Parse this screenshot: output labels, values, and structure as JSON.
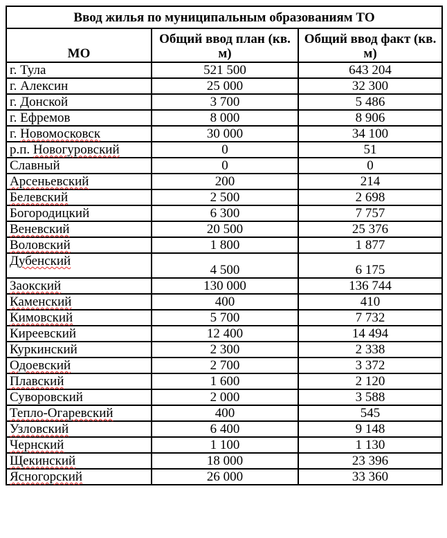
{
  "table": {
    "title": "Ввод жилья по муниципальным образованиям ТО",
    "headers": {
      "mo": "МО",
      "plan": "Общий ввод план (кв. м)",
      "fact": "Общий ввод факт (кв. м)"
    },
    "rows": [
      {
        "name": "г. Тула",
        "plan": "521 500",
        "fact": "643 204",
        "spellcheck": false
      },
      {
        "name": "г. Алексин",
        "plan": "25 000",
        "fact": "32 300",
        "spellcheck": false
      },
      {
        "name": "г. Донской",
        "plan": "3 700",
        "fact": "5 486",
        "spellcheck": false
      },
      {
        "name": "г. Ефремов",
        "plan": "8 000",
        "fact": "8 906",
        "spellcheck": false
      },
      {
        "name": "г. Новомосковск",
        "plan": "30 000",
        "fact": "34 100",
        "spellcheck": true
      },
      {
        "name": "р.п. Новогуровский",
        "plan": "0",
        "fact": "51",
        "spellcheck": true
      },
      {
        "name": "Славный",
        "plan": "0",
        "fact": "0",
        "spellcheck": false
      },
      {
        "name": "Арсеньевский",
        "plan": "200",
        "fact": "214",
        "spellcheck": true
      },
      {
        "name": "Белевский",
        "plan": "2 500",
        "fact": "2 698",
        "spellcheck": true
      },
      {
        "name": "Богородицкий",
        "plan": "6 300",
        "fact": "7 757",
        "spellcheck": false
      },
      {
        "name": "Веневский",
        "plan": "20 500",
        "fact": "25 376",
        "spellcheck": true
      },
      {
        "name": "Воловский",
        "plan": "1 800",
        "fact": "1 877",
        "spellcheck": true
      },
      {
        "name": "Дубенский",
        "plan": "4 500",
        "fact": "6 175",
        "spellcheck": true
      },
      {
        "name": "Заокский",
        "plan": "130 000",
        "fact": "136 744",
        "spellcheck": true
      },
      {
        "name": "Каменский",
        "plan": "400",
        "fact": "410",
        "spellcheck": true
      },
      {
        "name": "Кимовский",
        "plan": "5 700",
        "fact": "7 732",
        "spellcheck": true
      },
      {
        "name": "Киреевский",
        "plan": "12 400",
        "fact": "14 494",
        "spellcheck": false
      },
      {
        "name": "Куркинский",
        "plan": "2 300",
        "fact": "2 338",
        "spellcheck": false
      },
      {
        "name": "Одоевский",
        "plan": "2 700",
        "fact": "3 372",
        "spellcheck": true
      },
      {
        "name": "Плавский",
        "plan": "1 600",
        "fact": "2 120",
        "spellcheck": true
      },
      {
        "name": "Суворовский",
        "plan": "2 000",
        "fact": "3 588",
        "spellcheck": false
      },
      {
        "name": "Тепло-Огаревский",
        "plan": "400",
        "fact": "545",
        "spellcheck": true
      },
      {
        "name": "Узловский",
        "plan": "6 400",
        "fact": "9 148",
        "spellcheck": true
      },
      {
        "name": "Чернский",
        "plan": "1 100",
        "fact": "1 130",
        "spellcheck": true
      },
      {
        "name": "Щекинский",
        "plan": "18 000",
        "fact": "23 396",
        "spellcheck": true
      },
      {
        "name": "Ясногорский",
        "plan": "26 000",
        "fact": "33 360",
        "spellcheck": true
      }
    ]
  }
}
